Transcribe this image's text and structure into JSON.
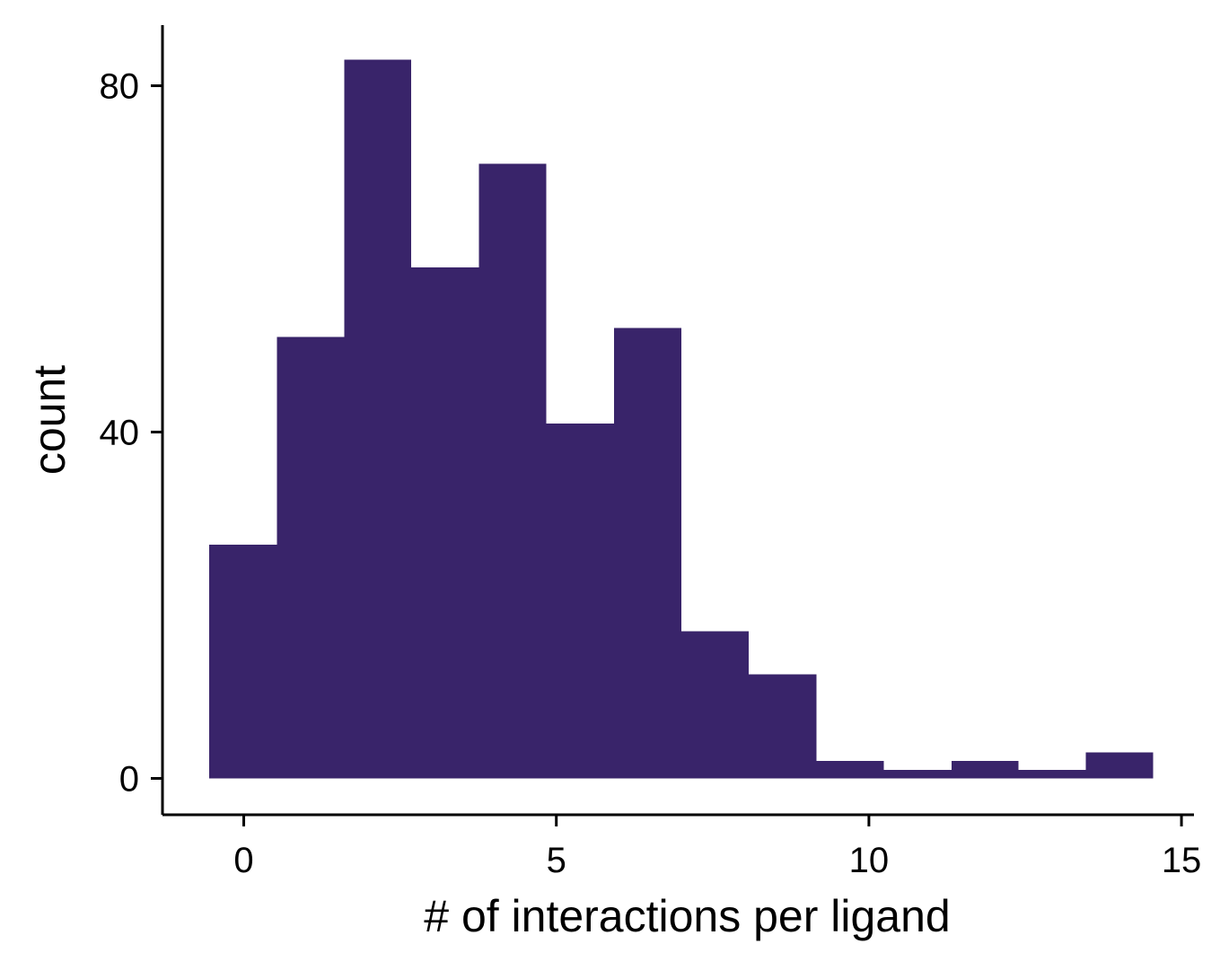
{
  "chart_data": {
    "type": "bar",
    "subtype": "histogram",
    "xlabel": "# of interactions per ligand",
    "ylabel": "count",
    "xlim": [
      -1.3,
      15.2
    ],
    "ylim": [
      -4.2,
      87
    ],
    "xticks": [
      0,
      5,
      10,
      15
    ],
    "yticks": [
      0,
      40,
      80
    ],
    "bar_color": "#39246a",
    "bins": [
      {
        "x0": -0.55,
        "x1": 0.53,
        "count": 27
      },
      {
        "x0": 0.53,
        "x1": 1.61,
        "count": 51
      },
      {
        "x0": 1.61,
        "x1": 2.68,
        "count": 83
      },
      {
        "x0": 2.68,
        "x1": 3.76,
        "count": 59
      },
      {
        "x0": 3.76,
        "x1": 4.84,
        "count": 71
      },
      {
        "x0": 4.84,
        "x1": 5.92,
        "count": 41
      },
      {
        "x0": 5.92,
        "x1": 7.0,
        "count": 52
      },
      {
        "x0": 7.0,
        "x1": 8.08,
        "count": 17
      },
      {
        "x0": 8.08,
        "x1": 9.16,
        "count": 12
      },
      {
        "x0": 9.16,
        "x1": 10.24,
        "count": 2
      },
      {
        "x0": 10.24,
        "x1": 11.32,
        "count": 1
      },
      {
        "x0": 11.32,
        "x1": 12.39,
        "count": 2
      },
      {
        "x0": 12.39,
        "x1": 13.47,
        "count": 1
      },
      {
        "x0": 13.47,
        "x1": 14.55,
        "count": 3
      }
    ],
    "grid": false,
    "legend": "none"
  }
}
